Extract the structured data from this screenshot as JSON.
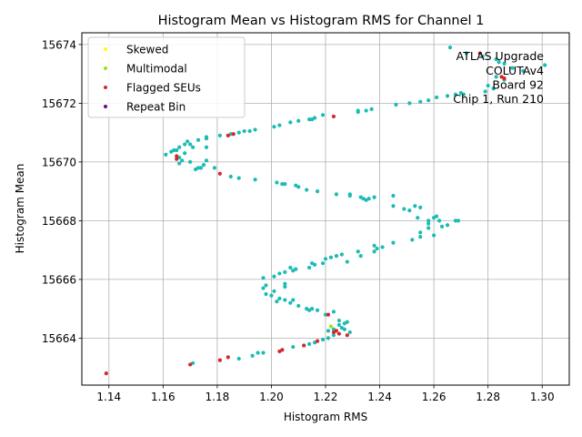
{
  "chart_data": {
    "type": "scatter",
    "title": "Histogram Mean vs Histogram RMS for Channel 1",
    "xlabel": "Histogram RMS",
    "ylabel": "Histogram Mean",
    "xlim": [
      1.13,
      1.31
    ],
    "ylim": [
      15662.4,
      15674.4
    ],
    "xticks": [
      "1.14",
      "1.16",
      "1.18",
      "1.20",
      "1.22",
      "1.24",
      "1.26",
      "1.28",
      "1.30"
    ],
    "yticks": [
      "15664",
      "15666",
      "15668",
      "15670",
      "15672",
      "15674"
    ],
    "grid": true,
    "legend_position": "top-left",
    "annotation": [
      "ATLAS Upgrade",
      "COLUTAv4",
      "Board 92",
      "Chip 1, Run 210"
    ],
    "colors": {
      "normal": "#1abcb3",
      "skewed": "#ffff00",
      "multimodal": "#9be21c",
      "flagged": "#d62728",
      "repeat": "#6a0d83",
      "grid": "#b0b0b0"
    },
    "legend": [
      {
        "label": "Skewed",
        "series": "skewed"
      },
      {
        "label": "Multimodal",
        "series": "multimodal"
      },
      {
        "label": "Flagged SEUs",
        "series": "flagged"
      },
      {
        "label": "Repeat Bin",
        "series": "repeat"
      }
    ],
    "series": [
      {
        "name": "Normal",
        "key": "normal",
        "points": [
          [
            1.266,
            15673.9
          ],
          [
            1.272,
            15673.7
          ],
          [
            1.278,
            15673.6
          ],
          [
            1.283,
            15673.5
          ],
          [
            1.284,
            15673.4
          ],
          [
            1.286,
            15673.35
          ],
          [
            1.289,
            15673.2
          ],
          [
            1.293,
            15673.1
          ],
          [
            1.301,
            15673.3
          ],
          [
            1.283,
            15672.9
          ],
          [
            1.286,
            15672.8
          ],
          [
            1.28,
            15672.6
          ],
          [
            1.282,
            15672.5
          ],
          [
            1.279,
            15672.4
          ],
          [
            1.271,
            15672.3
          ],
          [
            1.27,
            15672.35
          ],
          [
            1.268,
            15672.3
          ],
          [
            1.265,
            15672.25
          ],
          [
            1.261,
            15672.2
          ],
          [
            1.258,
            15672.1
          ],
          [
            1.255,
            15672.05
          ],
          [
            1.251,
            15672.0
          ],
          [
            1.246,
            15671.95
          ],
          [
            1.237,
            15671.8
          ],
          [
            1.235,
            15671.75
          ],
          [
            1.232,
            15671.7
          ],
          [
            1.232,
            15671.75
          ],
          [
            1.219,
            15671.6
          ],
          [
            1.216,
            15671.5
          ],
          [
            1.214,
            15671.45
          ],
          [
            1.215,
            15671.45
          ],
          [
            1.21,
            15671.4
          ],
          [
            1.207,
            15671.35
          ],
          [
            1.203,
            15671.25
          ],
          [
            1.201,
            15671.2
          ],
          [
            1.194,
            15671.1
          ],
          [
            1.192,
            15671.05
          ],
          [
            1.19,
            15671.05
          ],
          [
            1.188,
            15671.0
          ],
          [
            1.185,
            15670.95
          ],
          [
            1.181,
            15670.9
          ],
          [
            1.176,
            15670.85
          ],
          [
            1.176,
            15670.8
          ],
          [
            1.173,
            15670.75
          ],
          [
            1.169,
            15670.7
          ],
          [
            1.168,
            15670.6
          ],
          [
            1.17,
            15670.6
          ],
          [
            1.166,
            15670.5
          ],
          [
            1.165,
            15670.4
          ],
          [
            1.163,
            15670.35
          ],
          [
            1.164,
            15670.4
          ],
          [
            1.168,
            15670.3
          ],
          [
            1.161,
            15670.25
          ],
          [
            1.166,
            15670.15
          ],
          [
            1.167,
            15670.05
          ],
          [
            1.166,
            15669.95
          ],
          [
            1.17,
            15670.0
          ],
          [
            1.176,
            15670.05
          ],
          [
            1.175,
            15669.9
          ],
          [
            1.174,
            15669.8
          ],
          [
            1.172,
            15669.75
          ],
          [
            1.173,
            15669.8
          ],
          [
            1.179,
            15669.8
          ],
          [
            1.176,
            15670.5
          ],
          [
            1.171,
            15670.5
          ],
          [
            1.185,
            15669.5
          ],
          [
            1.188,
            15669.45
          ],
          [
            1.194,
            15669.4
          ],
          [
            1.202,
            15669.3
          ],
          [
            1.204,
            15669.25
          ],
          [
            1.205,
            15669.25
          ],
          [
            1.209,
            15669.2
          ],
          [
            1.21,
            15669.15
          ],
          [
            1.213,
            15669.05
          ],
          [
            1.217,
            15669.0
          ],
          [
            1.224,
            15668.9
          ],
          [
            1.229,
            15668.85
          ],
          [
            1.229,
            15668.9
          ],
          [
            1.233,
            15668.8
          ],
          [
            1.234,
            15668.75
          ],
          [
            1.235,
            15668.7
          ],
          [
            1.236,
            15668.75
          ],
          [
            1.238,
            15668.8
          ],
          [
            1.245,
            15668.85
          ],
          [
            1.245,
            15668.5
          ],
          [
            1.249,
            15668.4
          ],
          [
            1.251,
            15668.35
          ],
          [
            1.253,
            15668.5
          ],
          [
            1.255,
            15668.45
          ],
          [
            1.254,
            15668.1
          ],
          [
            1.258,
            15668.0
          ],
          [
            1.258,
            15667.9
          ],
          [
            1.26,
            15668.1
          ],
          [
            1.261,
            15668.15
          ],
          [
            1.262,
            15668.0
          ],
          [
            1.263,
            15667.8
          ],
          [
            1.265,
            15667.85
          ],
          [
            1.268,
            15668.0
          ],
          [
            1.269,
            15668.0
          ],
          [
            1.258,
            15667.75
          ],
          [
            1.26,
            15667.5
          ],
          [
            1.255,
            15667.6
          ],
          [
            1.255,
            15667.45
          ],
          [
            1.252,
            15667.35
          ],
          [
            1.245,
            15667.25
          ],
          [
            1.241,
            15667.1
          ],
          [
            1.239,
            15667.05
          ],
          [
            1.238,
            15667.15
          ],
          [
            1.238,
            15666.95
          ],
          [
            1.232,
            15666.95
          ],
          [
            1.233,
            15666.8
          ],
          [
            1.226,
            15666.85
          ],
          [
            1.224,
            15666.8
          ],
          [
            1.222,
            15666.75
          ],
          [
            1.22,
            15666.7
          ],
          [
            1.228,
            15666.6
          ],
          [
            1.219,
            15666.55
          ],
          [
            1.216,
            15666.5
          ],
          [
            1.215,
            15666.55
          ],
          [
            1.214,
            15666.4
          ],
          [
            1.209,
            15666.35
          ],
          [
            1.207,
            15666.4
          ],
          [
            1.208,
            15666.3
          ],
          [
            1.205,
            15666.25
          ],
          [
            1.203,
            15666.2
          ],
          [
            1.201,
            15666.1
          ],
          [
            1.197,
            15666.05
          ],
          [
            1.197,
            15665.7
          ],
          [
            1.198,
            15665.8
          ],
          [
            1.201,
            15665.6
          ],
          [
            1.198,
            15665.5
          ],
          [
            1.2,
            15665.45
          ],
          [
            1.203,
            15665.35
          ],
          [
            1.205,
            15665.85
          ],
          [
            1.205,
            15665.75
          ],
          [
            1.205,
            15665.3
          ],
          [
            1.202,
            15665.25
          ],
          [
            1.207,
            15665.2
          ],
          [
            1.208,
            15665.3
          ],
          [
            1.21,
            15665.1
          ],
          [
            1.213,
            15665.0
          ],
          [
            1.215,
            15665.0
          ],
          [
            1.214,
            15664.95
          ],
          [
            1.217,
            15664.95
          ],
          [
            1.22,
            15664.8
          ],
          [
            1.223,
            15664.9
          ],
          [
            1.225,
            15664.6
          ],
          [
            1.227,
            15664.5
          ],
          [
            1.228,
            15664.55
          ],
          [
            1.225,
            15664.45
          ],
          [
            1.226,
            15664.35
          ],
          [
            1.223,
            15664.3
          ],
          [
            1.221,
            15664.25
          ],
          [
            1.227,
            15664.3
          ],
          [
            1.229,
            15664.2
          ],
          [
            1.223,
            15664.1
          ],
          [
            1.221,
            15664.0
          ],
          [
            1.219,
            15663.95
          ],
          [
            1.216,
            15663.85
          ],
          [
            1.214,
            15663.8
          ],
          [
            1.212,
            15663.75
          ],
          [
            1.208,
            15663.7
          ],
          [
            1.204,
            15663.6
          ],
          [
            1.197,
            15663.5
          ],
          [
            1.193,
            15663.4
          ],
          [
            1.188,
            15663.3
          ],
          [
            1.195,
            15663.5
          ],
          [
            1.171,
            15663.15
          ]
        ]
      },
      {
        "name": "Skewed",
        "key": "skewed",
        "points": []
      },
      {
        "name": "Multimodal",
        "key": "multimodal",
        "points": [
          [
            1.222,
            15664.4
          ]
        ]
      },
      {
        "name": "Flagged SEUs",
        "key": "flagged",
        "points": [
          [
            1.277,
            15673.7
          ],
          [
            1.285,
            15672.9
          ],
          [
            1.286,
            15672.85
          ],
          [
            1.223,
            15671.55
          ],
          [
            1.186,
            15670.95
          ],
          [
            1.184,
            15670.9
          ],
          [
            1.165,
            15670.2
          ],
          [
            1.165,
            15670.1
          ],
          [
            1.181,
            15669.6
          ],
          [
            1.221,
            15664.8
          ],
          [
            1.223,
            15664.2
          ],
          [
            1.224,
            15664.25
          ],
          [
            1.225,
            15664.15
          ],
          [
            1.228,
            15664.1
          ],
          [
            1.217,
            15663.9
          ],
          [
            1.212,
            15663.75
          ],
          [
            1.204,
            15663.6
          ],
          [
            1.203,
            15663.55
          ],
          [
            1.184,
            15663.35
          ],
          [
            1.181,
            15663.25
          ],
          [
            1.17,
            15663.1
          ],
          [
            1.139,
            15662.8
          ]
        ]
      },
      {
        "name": "Repeat Bin",
        "key": "repeat",
        "points": []
      }
    ]
  }
}
